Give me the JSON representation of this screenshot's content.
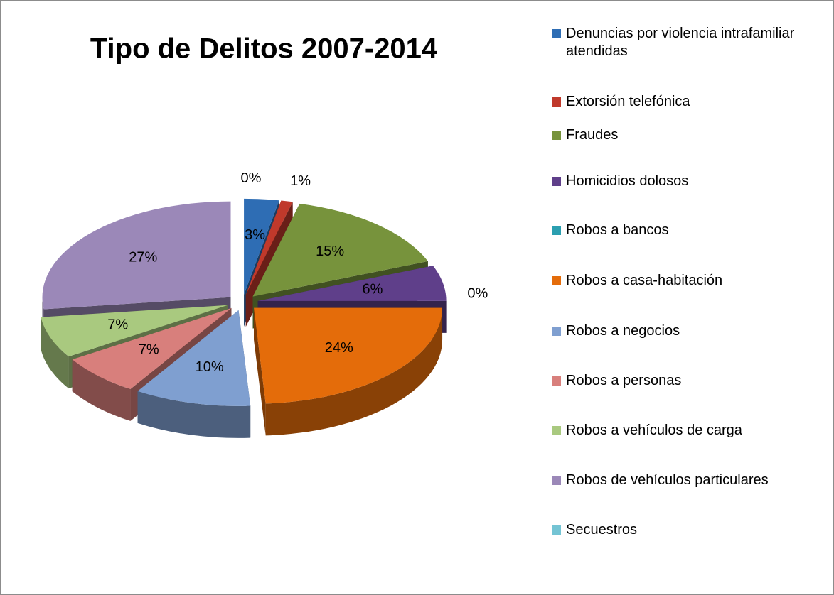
{
  "chart_data": {
    "type": "pie",
    "title": "Tipo de Delitos 2007-2014",
    "categories": [
      "Denuncias por violencia intrafamiliar atendidas",
      "Extorsión telefónica",
      "Fraudes",
      "Homicidios dolosos",
      "Robos a bancos",
      "Robos a casa-habitación",
      "Robos a negocios",
      "Robos a personas",
      "Robos a vehículos de carga",
      "Robos de vehículos particulares",
      "Secuestros"
    ],
    "values": [
      3,
      1,
      15,
      6,
      0,
      24,
      10,
      7,
      7,
      27,
      0
    ],
    "value_labels": [
      "3%",
      "1%",
      "15%",
      "6%",
      "0%",
      "24%",
      "10%",
      "7%",
      "7%",
      "27%",
      "0%"
    ],
    "colors": [
      "#2e6db4",
      "#c0392b",
      "#77933c",
      "#5f3f8a",
      "#2b9fb0",
      "#e46c0a",
      "#7f9fd0",
      "#d87f7c",
      "#a9c97f",
      "#9b88b8",
      "#74c4d4"
    ],
    "legend": "right"
  }
}
